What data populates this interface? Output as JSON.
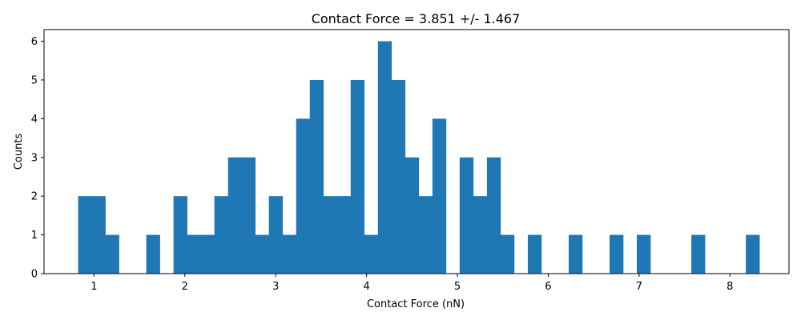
{
  "chart_data": {
    "type": "bar",
    "title": "Contact Force = 3.851 +/- 1.467",
    "xlabel": "Contact Force (nN)",
    "ylabel": "Counts",
    "xlim": [
      0.45,
      8.65
    ],
    "ylim": [
      0,
      6.3
    ],
    "x_ticks": [
      1,
      2,
      3,
      4,
      5,
      6,
      7,
      8
    ],
    "y_ticks": [
      0,
      1,
      2,
      3,
      4,
      5,
      6
    ],
    "bar_color": "#1f77b4",
    "grid": false,
    "legend": "none",
    "bin_edges": [
      0.825,
      0.975,
      1.125,
      1.275,
      1.425,
      1.575,
      1.725,
      1.875,
      2.025,
      2.175,
      2.325,
      2.475,
      2.625,
      2.775,
      2.925,
      3.075,
      3.225,
      3.375,
      3.525,
      3.675,
      3.825,
      3.975,
      4.125,
      4.275,
      4.425,
      4.575,
      4.725,
      4.875,
      5.025,
      5.175,
      5.325,
      5.475,
      5.625,
      5.775,
      5.925,
      6.075,
      6.225,
      6.375,
      6.525,
      6.675,
      6.825,
      6.975,
      7.125,
      7.275,
      7.425,
      7.575,
      7.725,
      7.875,
      8.025,
      8.175,
      8.325
    ],
    "counts": [
      2,
      2,
      1,
      0,
      0,
      1,
      0,
      2,
      1,
      1,
      2,
      3,
      3,
      1,
      2,
      1,
      4,
      5,
      2,
      2,
      5,
      1,
      6,
      5,
      3,
      2,
      4,
      0,
      3,
      2,
      3,
      1,
      0,
      1,
      0,
      0,
      1,
      0,
      0,
      1,
      0,
      1,
      0,
      0,
      0,
      1,
      0,
      0,
      0,
      1
    ]
  }
}
